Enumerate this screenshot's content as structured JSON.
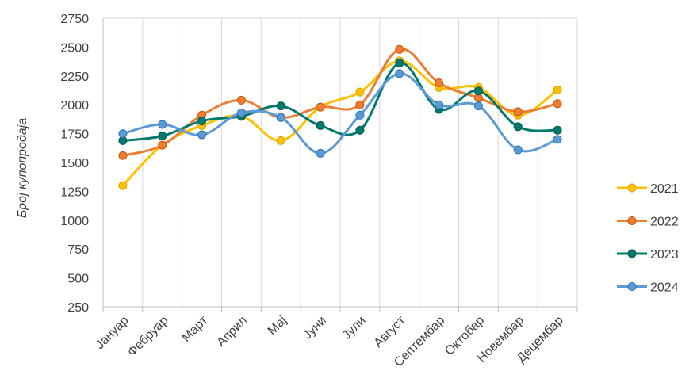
{
  "chart_data": {
    "type": "line",
    "title": "",
    "xlabel": "",
    "ylabel": "Број купопродаја",
    "categories": [
      "Јануар",
      "Фебруар",
      "Март",
      "Април",
      "Мај",
      "Јуни",
      "Јули",
      "Август",
      "Септембар",
      "Октобар",
      "Новембар",
      "Децембар"
    ],
    "yticks": [
      "250",
      "500",
      "750",
      "1000",
      "1250",
      "1500",
      "1750",
      "2000",
      "2250",
      "2500",
      "2750"
    ],
    "ylim": [
      250,
      2750
    ],
    "grid": "vertical",
    "smooth": true,
    "legend_position": "right",
    "series": [
      {
        "name": "2021",
        "color": "#FFC000",
        "edge": "#D9A300",
        "values": [
          1300,
          1650,
          1820,
          1900,
          1690,
          1980,
          2110,
          2380,
          2150,
          2150,
          1910,
          2130
        ]
      },
      {
        "name": "2022",
        "color": "#ED7D31",
        "edge": "#C55A11",
        "values": [
          1560,
          1650,
          1910,
          2040,
          1890,
          1980,
          2000,
          2480,
          2190,
          2060,
          1940,
          2010
        ]
      },
      {
        "name": "2023",
        "color": "#007A6E",
        "edge": "#005A52",
        "values": [
          1690,
          1730,
          1860,
          1900,
          1990,
          1820,
          1780,
          2360,
          1960,
          2120,
          1810,
          1780
        ]
      },
      {
        "name": "2024",
        "color": "#5B9BD5",
        "edge": "#2E75B6",
        "values": [
          1750,
          1830,
          1740,
          1930,
          1890,
          1580,
          1910,
          2270,
          2000,
          1990,
          1610,
          1700
        ]
      }
    ]
  }
}
